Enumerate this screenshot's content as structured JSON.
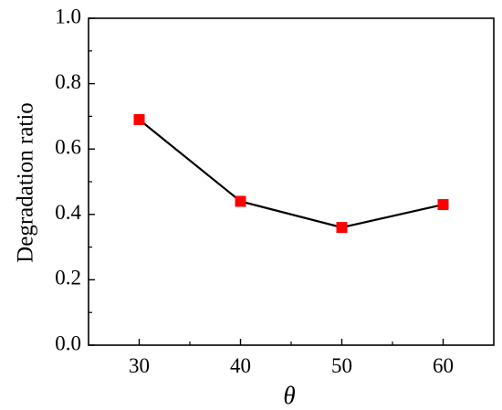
{
  "chart_data": {
    "type": "line",
    "title": "",
    "xlabel": "θ",
    "ylabel": "Degradation ratio",
    "x": [
      30,
      40,
      50,
      60
    ],
    "series": [
      {
        "values": [
          0.69,
          0.44,
          0.36,
          0.43
        ]
      }
    ],
    "xlim": [
      25,
      65
    ],
    "ylim": [
      0.0,
      1.0
    ],
    "x_ticks": [
      "30",
      "40",
      "50",
      "60"
    ],
    "y_ticks": [
      "0.0",
      "0.2",
      "0.4",
      "0.6",
      "0.8",
      "1.0"
    ],
    "x_tick_values": [
      30,
      40,
      50,
      60
    ],
    "y_tick_values": [
      0.0,
      0.2,
      0.4,
      0.6,
      0.8,
      1.0
    ],
    "grid": false,
    "legend": "none",
    "line_color": "#000000",
    "marker": "square",
    "marker_color": "#ff0000"
  }
}
